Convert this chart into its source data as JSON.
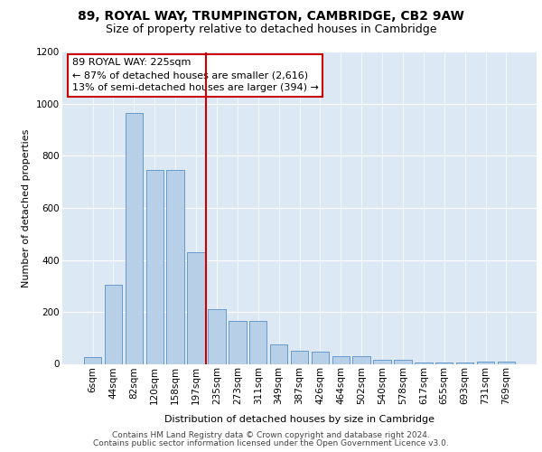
{
  "title_line1": "89, ROYAL WAY, TRUMPINGTON, CAMBRIDGE, CB2 9AW",
  "title_line2": "Size of property relative to detached houses in Cambridge",
  "xlabel": "Distribution of detached houses by size in Cambridge",
  "ylabel": "Number of detached properties",
  "categories": [
    "6sqm",
    "44sqm",
    "82sqm",
    "120sqm",
    "158sqm",
    "197sqm",
    "235sqm",
    "273sqm",
    "311sqm",
    "349sqm",
    "387sqm",
    "426sqm",
    "464sqm",
    "502sqm",
    "540sqm",
    "578sqm",
    "617sqm",
    "655sqm",
    "693sqm",
    "731sqm",
    "769sqm"
  ],
  "bar_values": [
    25,
    305,
    965,
    745,
    745,
    430,
    210,
    165,
    165,
    75,
    50,
    48,
    30,
    30,
    15,
    15,
    5,
    5,
    5,
    10,
    10
  ],
  "bar_color": "#b8cfe8",
  "bar_edgecolor": "#6699cc",
  "vline_x_idx": 5.5,
  "vline_color": "#cc0000",
  "annotation_text": "89 ROYAL WAY: 225sqm\n← 87% of detached houses are smaller (2,616)\n13% of semi-detached houses are larger (394) →",
  "annotation_box_color": "#ffffff",
  "annotation_box_edgecolor": "#cc0000",
  "ylim": [
    0,
    1200
  ],
  "yticks": [
    0,
    200,
    400,
    600,
    800,
    1000,
    1200
  ],
  "bg_color": "#dde8f5",
  "footer_line1": "Contains HM Land Registry data © Crown copyright and database right 2024.",
  "footer_line2": "Contains public sector information licensed under the Open Government Licence v3.0.",
  "title_fontsize": 10,
  "subtitle_fontsize": 9,
  "axis_label_fontsize": 8,
  "tick_fontsize": 7.5,
  "annotation_fontsize": 8,
  "footer_fontsize": 6.5
}
